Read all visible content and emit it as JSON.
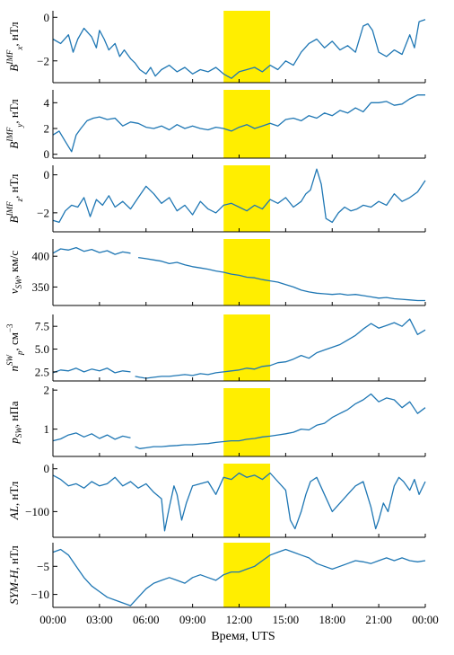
{
  "colors": {
    "series": "#1f77b4",
    "highlight": "#ffee00",
    "axis": "#000000"
  },
  "x_axis": {
    "label": "Время, UTS",
    "range_hours": [
      0,
      24
    ],
    "ticks": [
      0,
      3,
      6,
      9,
      12,
      15,
      18,
      21,
      24
    ],
    "tick_labels": [
      "00:00",
      "03:00",
      "06:00",
      "09:00",
      "12:00",
      "15:00",
      "18:00",
      "21:00",
      "00:00"
    ]
  },
  "highlight_hours": [
    11,
    14
  ],
  "chart_data": [
    {
      "id": "bx",
      "type": "line",
      "ylim": [
        -3.0,
        0.3
      ],
      "yticks": [
        0,
        -2
      ],
      "ytick_labels": [
        "0",
        "−2"
      ],
      "ylabel": {
        "base": "B",
        "sup": "IMF",
        "sub": "x",
        "unit": ", нТл"
      },
      "series": [
        {
          "x": [
            0,
            0.5,
            1,
            1.3,
            1.6,
            2,
            2.5,
            2.8,
            3,
            3.3,
            3.6,
            4,
            4.3,
            4.6,
            5,
            5.3,
            5.6,
            6,
            6.3,
            6.6,
            7,
            7.5,
            8,
            8.5,
            9,
            9.5,
            10,
            10.5,
            11,
            11.5,
            12,
            12.5,
            13,
            13.5,
            14,
            14.5,
            15,
            15.5,
            16,
            16.5,
            17,
            17.5,
            18,
            18.5,
            19,
            19.5,
            20,
            20.3,
            20.6,
            21,
            21.5,
            22,
            22.5,
            23,
            23.3,
            23.6,
            24
          ],
          "y": [
            -1.0,
            -1.2,
            -0.8,
            -1.6,
            -1.0,
            -0.5,
            -0.9,
            -1.4,
            -0.6,
            -1.0,
            -1.5,
            -1.2,
            -1.8,
            -1.5,
            -1.9,
            -2.1,
            -2.4,
            -2.6,
            -2.3,
            -2.7,
            -2.4,
            -2.2,
            -2.5,
            -2.3,
            -2.6,
            -2.4,
            -2.5,
            -2.3,
            -2.6,
            -2.8,
            -2.5,
            -2.4,
            -2.3,
            -2.5,
            -2.2,
            -2.4,
            -2.0,
            -2.2,
            -1.6,
            -1.2,
            -1.0,
            -1.4,
            -1.1,
            -1.5,
            -1.3,
            -1.6,
            -0.4,
            -0.3,
            -0.6,
            -1.6,
            -1.8,
            -1.5,
            -1.7,
            -0.8,
            -1.4,
            -0.2,
            -0.1
          ]
        }
      ]
    },
    {
      "id": "by",
      "type": "line",
      "ylim": [
        -0.3,
        5.0
      ],
      "yticks": [
        4,
        2,
        0
      ],
      "ytick_labels": [
        "4",
        "2",
        "0"
      ],
      "ylabel": {
        "base": "B",
        "sup": "IMF",
        "sub": "y",
        "unit": ", нТл"
      },
      "series": [
        {
          "x": [
            0,
            0.4,
            0.8,
            1.2,
            1.5,
            1.8,
            2.2,
            2.6,
            3,
            3.5,
            4,
            4.5,
            5,
            5.5,
            6,
            6.5,
            7,
            7.5,
            8,
            8.5,
            9,
            9.5,
            10,
            10.5,
            11,
            11.5,
            12,
            12.5,
            13,
            13.5,
            14,
            14.5,
            15,
            15.5,
            16,
            16.5,
            17,
            17.5,
            18,
            18.5,
            19,
            19.5,
            20,
            20.5,
            21,
            21.5,
            22,
            22.5,
            23,
            23.5,
            24
          ],
          "y": [
            1.5,
            1.8,
            1.0,
            0.2,
            1.5,
            2.0,
            2.6,
            2.8,
            2.9,
            2.7,
            2.8,
            2.2,
            2.5,
            2.4,
            2.1,
            2.0,
            2.2,
            1.9,
            2.3,
            2.0,
            2.2,
            2.0,
            1.9,
            2.1,
            2.0,
            1.8,
            2.1,
            2.3,
            2.0,
            2.2,
            2.4,
            2.2,
            2.7,
            2.8,
            2.6,
            3.0,
            2.8,
            3.2,
            3.0,
            3.4,
            3.2,
            3.6,
            3.3,
            4.0,
            4.0,
            4.1,
            3.8,
            3.9,
            4.3,
            4.6,
            4.6
          ]
        }
      ]
    },
    {
      "id": "bz",
      "type": "line",
      "ylim": [
        -3.0,
        0.5
      ],
      "yticks": [
        0,
        -2
      ],
      "ytick_labels": [
        "0",
        "−2"
      ],
      "ylabel": {
        "base": "B",
        "sup": "IMF",
        "sub": "z",
        "unit": ", нТл"
      },
      "series": [
        {
          "x": [
            0,
            0.4,
            0.8,
            1.2,
            1.6,
            2,
            2.4,
            2.8,
            3.2,
            3.6,
            4,
            4.5,
            5,
            5.5,
            6,
            6.5,
            7,
            7.5,
            8,
            8.5,
            9,
            9.5,
            10,
            10.5,
            11,
            11.5,
            12,
            12.5,
            13,
            13.5,
            14,
            14.5,
            15,
            15.5,
            16,
            16.3,
            16.6,
            17,
            17.3,
            17.6,
            18,
            18.4,
            18.8,
            19.2,
            19.6,
            20,
            20.5,
            21,
            21.5,
            22,
            22.5,
            23,
            23.5,
            24
          ],
          "y": [
            -2.4,
            -2.5,
            -1.9,
            -1.6,
            -1.7,
            -1.2,
            -2.2,
            -1.3,
            -1.6,
            -1.1,
            -1.7,
            -1.4,
            -1.8,
            -1.2,
            -0.6,
            -1.0,
            -1.5,
            -1.2,
            -1.9,
            -1.6,
            -2.1,
            -1.4,
            -1.8,
            -2.0,
            -1.6,
            -1.5,
            -1.7,
            -1.9,
            -1.6,
            -1.8,
            -1.3,
            -1.5,
            -1.2,
            -1.7,
            -1.4,
            -1.0,
            -0.8,
            0.3,
            -0.5,
            -2.3,
            -2.5,
            -2.0,
            -1.7,
            -1.9,
            -1.8,
            -1.6,
            -1.7,
            -1.4,
            -1.6,
            -1.0,
            -1.4,
            -1.2,
            -0.9,
            -0.3
          ]
        }
      ]
    },
    {
      "id": "vsw",
      "type": "line",
      "ylim": [
        320,
        428
      ],
      "yticks": [
        400,
        350
      ],
      "ytick_labels": [
        "400",
        "350"
      ],
      "ylabel": {
        "base": "v",
        "sub": "SW",
        "unit": ", км/с"
      },
      "series": [
        {
          "x": [
            0,
            0.5,
            1,
            1.5,
            2,
            2.5,
            3,
            3.5,
            4,
            4.5,
            5
          ],
          "y": [
            405,
            412,
            410,
            414,
            408,
            411,
            406,
            409,
            403,
            407,
            405
          ]
        },
        {
          "x": [
            5.5,
            6,
            6.5,
            7,
            7.5,
            8,
            8.5,
            9,
            9.5,
            10,
            10.5,
            11,
            11.5,
            12,
            12.5,
            13,
            13.5,
            14,
            14.5,
            15,
            15.5,
            16,
            16.5,
            17,
            17.5,
            18,
            18.5,
            19,
            19.5,
            20,
            20.5,
            21,
            21.5,
            22,
            22.5,
            23,
            23.5,
            24
          ],
          "y": [
            398,
            396,
            394,
            392,
            388,
            390,
            386,
            383,
            381,
            379,
            376,
            374,
            371,
            369,
            366,
            365,
            362,
            360,
            358,
            354,
            350,
            345,
            342,
            340,
            339,
            338,
            339,
            337,
            338,
            336,
            334,
            332,
            333,
            331,
            330,
            329,
            328,
            328
          ]
        }
      ]
    },
    {
      "id": "np",
      "type": "line",
      "ylim": [
        1.5,
        8.8
      ],
      "yticks": [
        7.5,
        5.0,
        2.5
      ],
      "ytick_labels": [
        "7.5",
        "5.0",
        "2.5"
      ],
      "ylabel": {
        "base": "n",
        "sup": "SW",
        "sub": "p",
        "unit": ", см",
        "unit_sup": "−3"
      },
      "series": [
        {
          "x": [
            0,
            0.5,
            1,
            1.5,
            2,
            2.5,
            3,
            3.5,
            4,
            4.5,
            5
          ],
          "y": [
            2.4,
            2.7,
            2.6,
            2.9,
            2.5,
            2.8,
            2.6,
            2.9,
            2.4,
            2.6,
            2.5
          ]
        },
        {
          "x": [
            5.3,
            5.6,
            6,
            6.5,
            7,
            7.5,
            8,
            8.5,
            9,
            9.5,
            10,
            10.5,
            11,
            11.5,
            12,
            12.5,
            13,
            13.5,
            14,
            14.5,
            15,
            15.5,
            16,
            16.5,
            17,
            17.5,
            18,
            18.5,
            19,
            19.5,
            20,
            20.5,
            21,
            21.5,
            22,
            22.5,
            23,
            23.5,
            24
          ],
          "y": [
            2.0,
            1.9,
            1.8,
            1.9,
            2.0,
            2.0,
            2.1,
            2.2,
            2.1,
            2.3,
            2.2,
            2.4,
            2.5,
            2.6,
            2.7,
            2.9,
            2.8,
            3.1,
            3.2,
            3.5,
            3.6,
            3.9,
            4.3,
            4.0,
            4.6,
            4.9,
            5.2,
            5.5,
            6.0,
            6.5,
            7.2,
            7.8,
            7.3,
            7.6,
            7.9,
            7.5,
            8.3,
            6.6,
            7.1
          ]
        }
      ]
    },
    {
      "id": "psw",
      "type": "line",
      "ylim": [
        0.3,
        2.05
      ],
      "yticks": [
        2,
        1
      ],
      "ytick_labels": [
        "2",
        "1"
      ],
      "ylabel": {
        "base": "p",
        "sub": "SW",
        "unit": ", нПа"
      },
      "series": [
        {
          "x": [
            0,
            0.5,
            1,
            1.5,
            2,
            2.5,
            3,
            3.5,
            4,
            4.5,
            5
          ],
          "y": [
            0.7,
            0.75,
            0.85,
            0.9,
            0.8,
            0.88,
            0.76,
            0.85,
            0.74,
            0.82,
            0.78
          ]
        },
        {
          "x": [
            5.3,
            5.6,
            6,
            6.5,
            7,
            7.5,
            8,
            8.5,
            9,
            9.5,
            10,
            10.5,
            11,
            11.5,
            12,
            12.5,
            13,
            13.5,
            14,
            14.5,
            15,
            15.5,
            16,
            16.5,
            17,
            17.5,
            18,
            18.5,
            19,
            19.5,
            20,
            20.5,
            21,
            21.5,
            22,
            22.5,
            23,
            23.5,
            24
          ],
          "y": [
            0.55,
            0.5,
            0.52,
            0.55,
            0.55,
            0.57,
            0.58,
            0.6,
            0.6,
            0.62,
            0.63,
            0.66,
            0.68,
            0.7,
            0.7,
            0.74,
            0.76,
            0.8,
            0.82,
            0.85,
            0.88,
            0.92,
            1.0,
            0.98,
            1.1,
            1.15,
            1.3,
            1.4,
            1.5,
            1.65,
            1.75,
            1.9,
            1.7,
            1.8,
            1.75,
            1.55,
            1.7,
            1.4,
            1.55
          ]
        }
      ]
    },
    {
      "id": "al",
      "type": "line",
      "ylim": [
        -160,
        12
      ],
      "yticks": [
        0,
        -100
      ],
      "ytick_labels": [
        "0",
        "−100"
      ],
      "ylabel": {
        "base": "AL",
        "unit": ", нТл"
      },
      "series": [
        {
          "x": [
            0,
            0.5,
            1,
            1.5,
            2,
            2.5,
            3,
            3.5,
            4,
            4.5,
            5,
            5.5,
            6,
            6.5,
            7,
            7.2,
            7.5,
            7.8,
            8,
            8.3,
            8.6,
            9,
            9.5,
            10,
            10.5,
            11,
            11.5,
            12,
            12.5,
            13,
            13.5,
            14,
            14.5,
            15,
            15.3,
            15.6,
            16,
            16.3,
            16.6,
            17,
            17.5,
            18,
            18.5,
            19,
            19.5,
            20,
            20.5,
            20.8,
            21,
            21.3,
            21.6,
            22,
            22.3,
            22.6,
            23,
            23.3,
            23.6,
            24
          ],
          "y": [
            -15,
            -25,
            -40,
            -35,
            -45,
            -30,
            -40,
            -35,
            -20,
            -40,
            -30,
            -45,
            -35,
            -55,
            -70,
            -145,
            -90,
            -40,
            -60,
            -120,
            -80,
            -40,
            -35,
            -30,
            -60,
            -20,
            -25,
            -10,
            -20,
            -15,
            -25,
            -10,
            -30,
            -50,
            -120,
            -140,
            -100,
            -60,
            -30,
            -20,
            -60,
            -100,
            -80,
            -60,
            -40,
            -30,
            -90,
            -140,
            -120,
            -80,
            -100,
            -40,
            -20,
            -30,
            -50,
            -25,
            -60,
            -30
          ]
        }
      ]
    },
    {
      "id": "symh",
      "type": "line",
      "ylim": [
        -12.3,
        -0.8
      ],
      "yticks": [
        -5,
        -10
      ],
      "ytick_labels": [
        "−5",
        "−10"
      ],
      "ylabel": {
        "base": "SYM-H",
        "unit": ", нТл"
      },
      "series": [
        {
          "x": [
            0,
            0.5,
            1,
            1.5,
            2,
            2.5,
            3,
            3.5,
            4,
            4.5,
            5,
            5.5,
            6,
            6.5,
            7,
            7.5,
            8,
            8.5,
            9,
            9.5,
            10,
            10.5,
            11,
            11.5,
            12,
            12.5,
            13,
            13.5,
            14,
            14.5,
            15,
            15.5,
            16,
            16.5,
            17,
            17.5,
            18,
            18.5,
            19,
            19.5,
            20,
            20.5,
            21,
            21.5,
            22,
            22.5,
            23,
            23.5,
            24
          ],
          "y": [
            -2.5,
            -2.0,
            -3.0,
            -5.0,
            -7.0,
            -8.5,
            -9.5,
            -10.5,
            -11.0,
            -11.5,
            -12.0,
            -10.5,
            -9.0,
            -8.0,
            -7.5,
            -7.0,
            -7.5,
            -8.0,
            -7.0,
            -6.5,
            -7.0,
            -7.5,
            -6.5,
            -6.0,
            -6.0,
            -5.5,
            -5.0,
            -4.0,
            -3.0,
            -2.5,
            -2.0,
            -2.5,
            -3.0,
            -3.5,
            -4.5,
            -5.0,
            -5.5,
            -5.0,
            -4.5,
            -4.0,
            -4.2,
            -4.5,
            -4.0,
            -3.5,
            -4.0,
            -3.5,
            -4.0,
            -4.2,
            -4.0
          ]
        }
      ]
    }
  ]
}
